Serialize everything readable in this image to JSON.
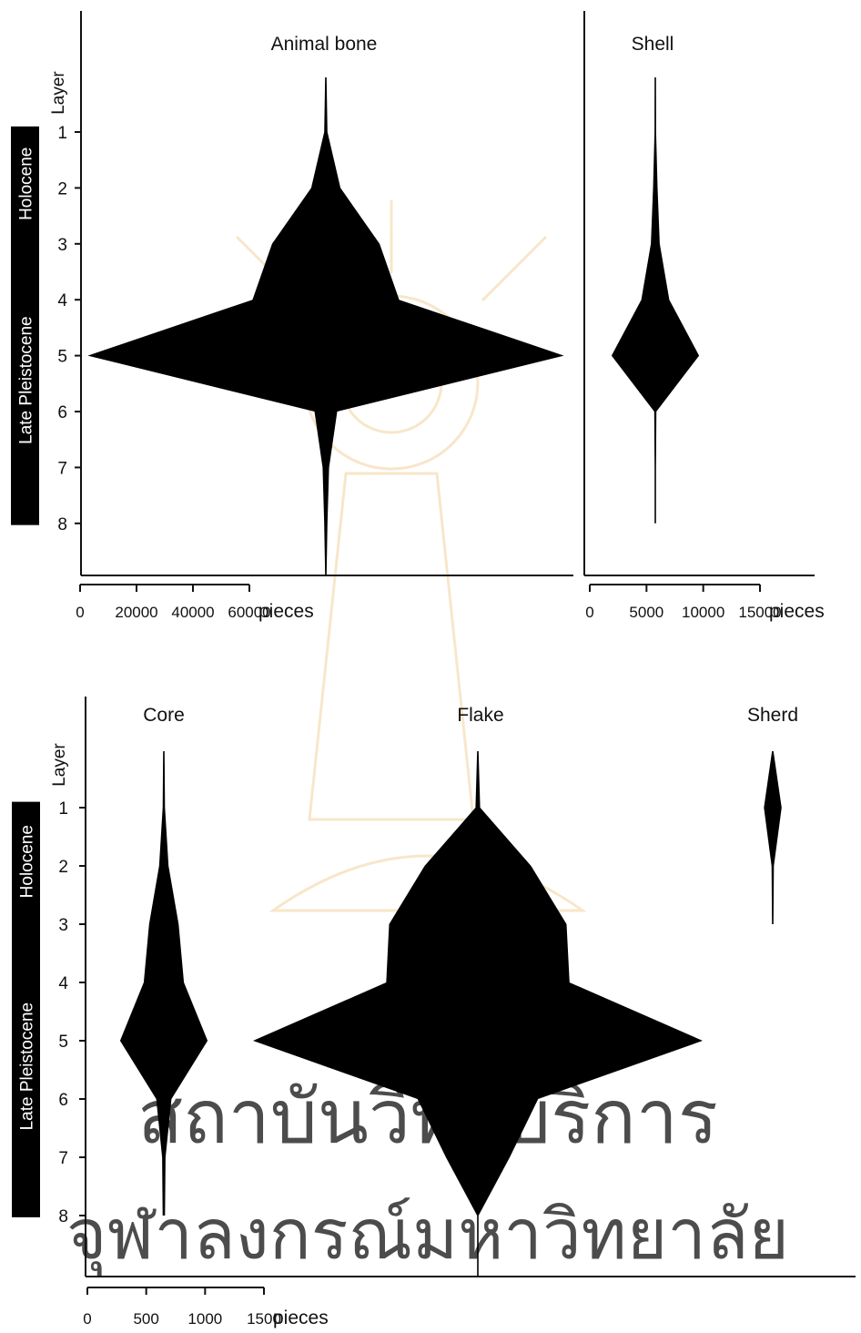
{
  "watermark": {
    "line1": "สถาบันวิทยบริการ",
    "line2": "จุฬาลงกรณ์มหาวิทยาลัย",
    "color": "#f3c7c9"
  },
  "colors": {
    "shape": "#000000",
    "axis": "#111111",
    "period_bg": "#000000",
    "period_text": "#ffffff"
  },
  "periods": [
    {
      "name": "Holocene",
      "layers": [
        1,
        2
      ]
    },
    {
      "name": "Late Pleistocene",
      "layers": [
        3,
        8
      ]
    }
  ],
  "layer_axis_label": "Layer",
  "chart_data": [
    {
      "type": "area",
      "panel": "top",
      "title": "Animal bone",
      "unit_label": "pieces",
      "xticks": [
        0,
        20000,
        40000,
        60000
      ],
      "xtick_labels": [
        "0",
        "20000",
        "40000",
        "60000"
      ],
      "layers": [
        1,
        2,
        3,
        4,
        5,
        6,
        7,
        8
      ],
      "values": [
        1000,
        9000,
        33000,
        45000,
        146000,
        7000,
        2000,
        1000
      ]
    },
    {
      "type": "area",
      "panel": "top",
      "title": "Shell",
      "unit_label": "pieces",
      "xticks": [
        0,
        5000,
        10000,
        15000
      ],
      "xtick_labels": [
        "0",
        "5000",
        "10000",
        "15000"
      ],
      "layers": [
        1,
        2,
        3,
        4,
        5,
        6,
        7,
        8
      ],
      "values": [
        150,
        400,
        800,
        2500,
        7800,
        200,
        80,
        40
      ]
    },
    {
      "type": "area",
      "panel": "bottom",
      "title": "Core",
      "unit_label": "pieces",
      "xticks": [
        0,
        500,
        1000,
        1500
      ],
      "xtick_labels": [
        "0",
        "500",
        "1000",
        "1500"
      ],
      "layers": [
        1,
        2,
        3,
        4,
        5,
        6,
        7,
        8
      ],
      "values": [
        20,
        80,
        250,
        340,
        740,
        130,
        30,
        20
      ]
    },
    {
      "type": "area",
      "panel": "bottom",
      "title": "Flake",
      "unit_label": "pieces",
      "layers": [
        1,
        2,
        3,
        4,
        5,
        6,
        7,
        8
      ],
      "values": [
        40,
        900,
        1500,
        1550,
        3800,
        1020,
        540,
        10
      ]
    },
    {
      "type": "area",
      "panel": "bottom",
      "title": "Sherd",
      "unit_label": "pieces",
      "layers": [
        1,
        2,
        3
      ],
      "values": [
        150,
        20,
        5
      ]
    }
  ]
}
